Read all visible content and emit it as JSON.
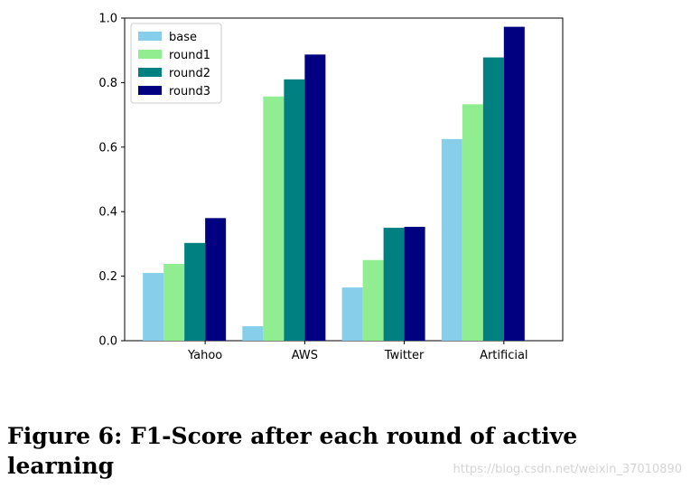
{
  "chart_data": {
    "type": "bar",
    "categories": [
      "Yahoo",
      "AWS",
      "Twitter",
      "Artificial"
    ],
    "series": [
      {
        "name": "base",
        "color": "#87ceeb",
        "values": [
          0.21,
          0.045,
          0.165,
          0.625
        ]
      },
      {
        "name": "round1",
        "color": "#90ee90",
        "values": [
          0.238,
          0.757,
          0.25,
          0.733
        ]
      },
      {
        "name": "round2",
        "color": "#008080",
        "values": [
          0.303,
          0.81,
          0.35,
          0.878
        ]
      },
      {
        "name": "round3",
        "color": "#000080",
        "values": [
          0.38,
          0.887,
          0.353,
          0.973
        ]
      }
    ],
    "ylim": [
      0,
      1.0
    ],
    "yticks": [
      "0.0",
      "0.2",
      "0.4",
      "0.6",
      "0.8",
      "1.0"
    ],
    "legend_position": "top-left",
    "grid": false
  },
  "caption": "Figure 6: F1-Score after each round of active learning",
  "watermark": "https://blog.csdn.net/weixin_37010890"
}
